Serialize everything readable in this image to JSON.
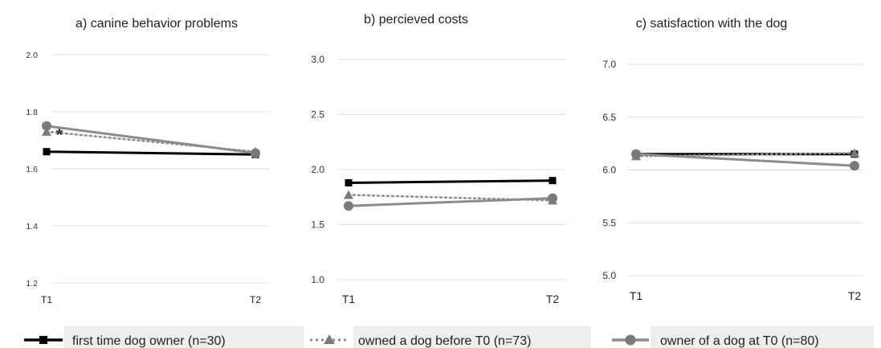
{
  "chart_data": [
    {
      "type": "line",
      "title": "a) canine behavior problems",
      "categories": [
        "T1",
        "T2"
      ],
      "ylim": [
        1.2,
        2.0
      ],
      "yticks": [
        "1.2",
        "1.4",
        "1.6",
        "1.8",
        "2.0"
      ],
      "grid": true,
      "series": [
        {
          "name": "first time dog owner (n=30)",
          "values": [
            1.66,
            1.65
          ]
        },
        {
          "name": "owned a dog before T0 (n=73)",
          "values": [
            1.73,
            1.66
          ]
        },
        {
          "name": "owner of a dog at T0 (n=80)",
          "values": [
            1.75,
            1.655
          ]
        }
      ],
      "annotations": [
        {
          "text": "*",
          "x": "T1",
          "y": 1.72
        }
      ]
    },
    {
      "type": "line",
      "title": "b) percieved costs",
      "categories": [
        "T1",
        "T2"
      ],
      "ylim": [
        1.0,
        3.0
      ],
      "yticks": [
        "1.0",
        "1.5",
        "2.0",
        "2.5",
        "3.0"
      ],
      "grid": true,
      "series": [
        {
          "name": "first time dog owner (n=30)",
          "values": [
            1.88,
            1.9
          ]
        },
        {
          "name": "owned a dog before T0 (n=73)",
          "values": [
            1.77,
            1.72
          ]
        },
        {
          "name": "owner of a dog at T0 (n=80)",
          "values": [
            1.67,
            1.74
          ]
        }
      ]
    },
    {
      "type": "line",
      "title": "c) satisfaction with the dog",
      "categories": [
        "T1",
        "T2"
      ],
      "ylim": [
        5.0,
        7.0
      ],
      "yticks": [
        "5.0",
        "5.5",
        "6.0",
        "6.5",
        "7.0"
      ],
      "grid": true,
      "series": [
        {
          "name": "first time dog owner (n=30)",
          "values": [
            6.15,
            6.15
          ]
        },
        {
          "name": "owned a dog before T0 (n=73)",
          "values": [
            6.13,
            6.16
          ]
        },
        {
          "name": "owner of a dog at T0 (n=80)",
          "values": [
            6.15,
            6.04
          ]
        }
      ]
    }
  ],
  "legend": {
    "placement": "bottom",
    "items": [
      {
        "label": "first time dog owner (n=30)",
        "color": "#000000",
        "line": "solid",
        "marker": "square"
      },
      {
        "label": "owned a dog before T0 (n=73)",
        "color": "#8c8c8c",
        "line": "dotted",
        "marker": "triangle"
      },
      {
        "label": "owner of a dog at T0 (n=80)",
        "color": "#8c8c8c",
        "line": "solid",
        "marker": "circle"
      }
    ]
  },
  "colors": {
    "series_black": "#000000",
    "series_gray": "#8c8c8c",
    "marker_gray": "#7a7a7a",
    "grid": "#e2e2e2"
  }
}
